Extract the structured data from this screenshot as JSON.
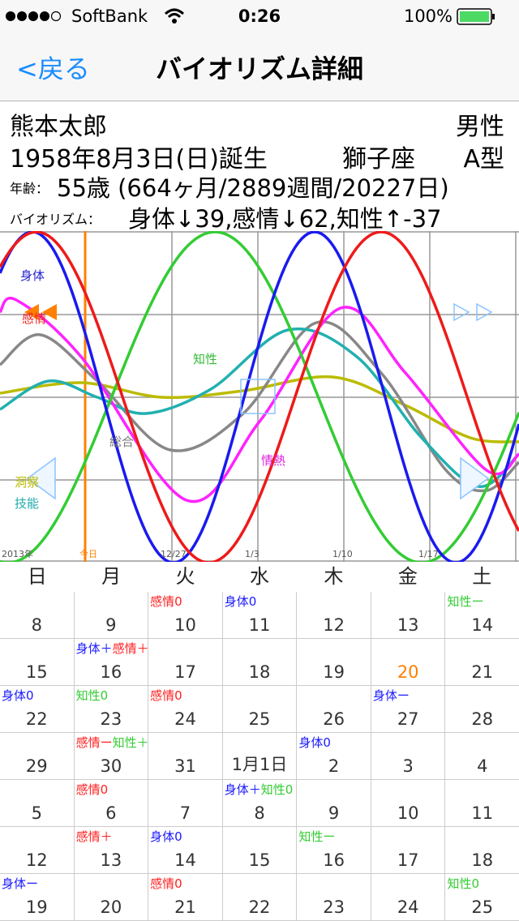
{
  "status": {
    "carrier": "SoftBank",
    "time": "0:26",
    "battery": "100%"
  },
  "nav": {
    "back": "<戻る",
    "title": "バイオリズム詳細"
  },
  "profile": {
    "name": "熊本太郎",
    "gender": "男性",
    "birth": "1958年8月3日(日)誕生",
    "sign": "獅子座",
    "blood": "A型",
    "age_label": "年齢：",
    "age": "55歳 (664ヶ月/2889週間/20227日)",
    "bio_label": "バイオリズム：",
    "bio": "身体↓39,感情↓62,知性↑-37"
  },
  "chart": {
    "labels": [
      {
        "text": "身体",
        "color": "#2222cc"
      },
      {
        "text": "感情",
        "color": "#ee2222"
      },
      {
        "text": "知性",
        "color": "#33bb33"
      },
      {
        "text": "総合",
        "color": "#777777"
      },
      {
        "text": "情熱",
        "color": "#dd22dd"
      },
      {
        "text": "洞察",
        "color": "#bbbb00"
      },
      {
        "text": "技能",
        "color": "#22aaaa"
      }
    ],
    "dates": [
      {
        "text": "2013年",
        "color": "#555555"
      },
      {
        "text": "今日",
        "color": "#ff8000"
      },
      {
        "text": "12/27",
        "color": "#555555"
      },
      {
        "text": "1/3",
        "color": "#555555"
      },
      {
        "text": "1/10",
        "color": "#555555"
      },
      {
        "text": "1/17",
        "color": "#555555"
      }
    ]
  },
  "weekdays": [
    "日",
    "月",
    "火",
    "水",
    "木",
    "金",
    "土"
  ],
  "calendar": [
    [
      {
        "day": 8
      },
      {
        "day": 9
      },
      {
        "day": 10,
        "tags": [
          {
            "text": "感情0",
            "color": "#ff2020"
          }
        ]
      },
      {
        "day": 11,
        "tags": [
          {
            "text": "身体0",
            "color": "#1a1aff"
          }
        ]
      },
      {
        "day": 12
      },
      {
        "day": 13
      },
      {
        "day": 14,
        "tags": [
          {
            "text": "知性ー",
            "color": "#33cc33"
          }
        ]
      }
    ],
    [
      {
        "day": 15
      },
      {
        "day": 16,
        "tags": [
          {
            "text": "身体＋",
            "color": "#1a1aff"
          },
          {
            "text": "感情＋",
            "color": "#ff2020"
          }
        ]
      },
      {
        "day": 17
      },
      {
        "day": 18
      },
      {
        "day": 19
      },
      {
        "day": 20,
        "color": "#ff8000"
      },
      {
        "day": 21
      }
    ],
    [
      {
        "day": 22,
        "tags": [
          {
            "text": "身体0",
            "color": "#1a1aff"
          }
        ]
      },
      {
        "day": 23,
        "tags": [
          {
            "text": "知性0",
            "color": "#33cc33"
          }
        ]
      },
      {
        "day": 24,
        "tags": [
          {
            "text": "感情0",
            "color": "#ff2020"
          }
        ]
      },
      {
        "day": 25
      },
      {
        "day": 26
      },
      {
        "day": 27,
        "tags": [
          {
            "text": "身体ー",
            "color": "#1a1aff"
          }
        ]
      },
      {
        "day": 28
      }
    ],
    [
      {
        "day": 29
      },
      {
        "day": 30,
        "tags": [
          {
            "text": "感情ー",
            "color": "#ff2020"
          },
          {
            "text": "知性＋",
            "color": "#33cc33"
          }
        ]
      },
      {
        "day": 31
      },
      {
        "day": "1月1日"
      },
      {
        "day": 2,
        "tags": [
          {
            "text": "身体0",
            "color": "#1a1aff"
          }
        ]
      },
      {
        "day": 3
      },
      {
        "day": 4
      }
    ],
    [
      {
        "day": 5
      },
      {
        "day": 6,
        "tags": [
          {
            "text": "感情0",
            "color": "#ff2020"
          }
        ]
      },
      {
        "day": 7
      },
      {
        "day": 8,
        "tags": [
          {
            "text": "身体＋",
            "color": "#1a1aff"
          },
          {
            "text": "知性0",
            "color": "#33cc33"
          }
        ]
      },
      {
        "day": 9
      },
      {
        "day": 10
      },
      {
        "day": 11
      }
    ],
    [
      {
        "day": 12
      },
      {
        "day": 13,
        "tags": [
          {
            "text": "感情＋",
            "color": "#ff2020"
          }
        ]
      },
      {
        "day": 14,
        "tags": [
          {
            "text": "身体0",
            "color": "#1a1aff"
          }
        ]
      },
      {
        "day": 15
      },
      {
        "day": 16,
        "tags": [
          {
            "text": "知性ー",
            "color": "#33cc33"
          }
        ]
      },
      {
        "day": 17
      },
      {
        "day": 18
      }
    ],
    [
      {
        "day": 19,
        "tags": [
          {
            "text": "身体ー",
            "color": "#1a1aff"
          }
        ]
      },
      {
        "day": 20
      },
      {
        "day": 21,
        "tags": [
          {
            "text": "感情0",
            "color": "#ff2020"
          }
        ]
      },
      {
        "day": 22
      },
      {
        "day": 23
      },
      {
        "day": 24
      },
      {
        "day": 25,
        "tags": [
          {
            "text": "知性0",
            "color": "#33cc33"
          }
        ]
      }
    ]
  ]
}
